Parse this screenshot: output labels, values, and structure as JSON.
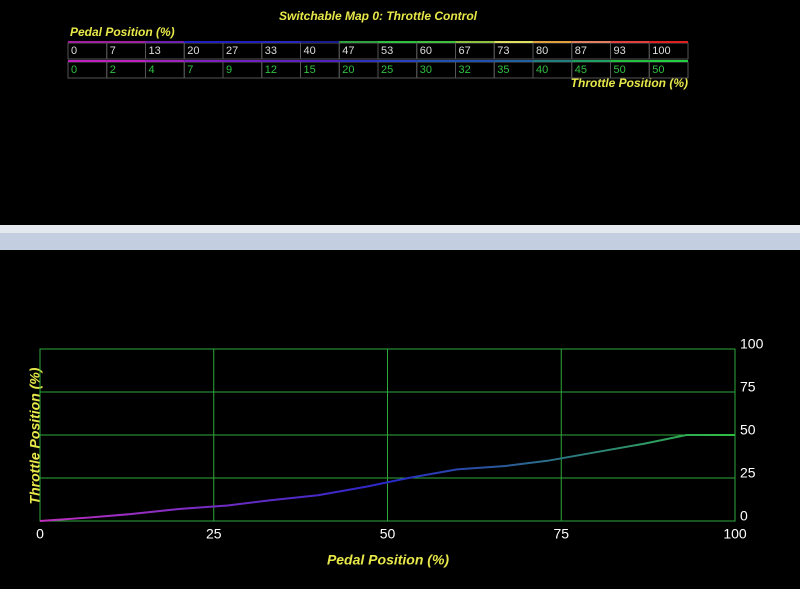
{
  "title": "Switchable Map 0: Throttle Control",
  "chart_data": {
    "type": "line",
    "x_label": "Pedal Position (%)",
    "y_label": "Throttle Position (%)",
    "x": [
      0,
      7,
      13,
      20,
      27,
      33,
      40,
      47,
      53,
      60,
      67,
      73,
      80,
      87,
      93,
      100
    ],
    "series": [
      {
        "colors": [
          "#c030c0",
          "#2828c8",
          "#30c040"
        ],
        "values": [
          0,
          2,
          4,
          7,
          9,
          12,
          15,
          20,
          25,
          30,
          32,
          35,
          40,
          45,
          50,
          50
        ]
      }
    ],
    "xlim": [
      0,
      100
    ],
    "ylim": [
      0,
      100
    ],
    "xticks": [
      0,
      25,
      50,
      75,
      100
    ],
    "yticks": [
      0,
      25,
      50,
      75,
      100
    ],
    "grid": true,
    "grid_color": "#2fa83a"
  }
}
